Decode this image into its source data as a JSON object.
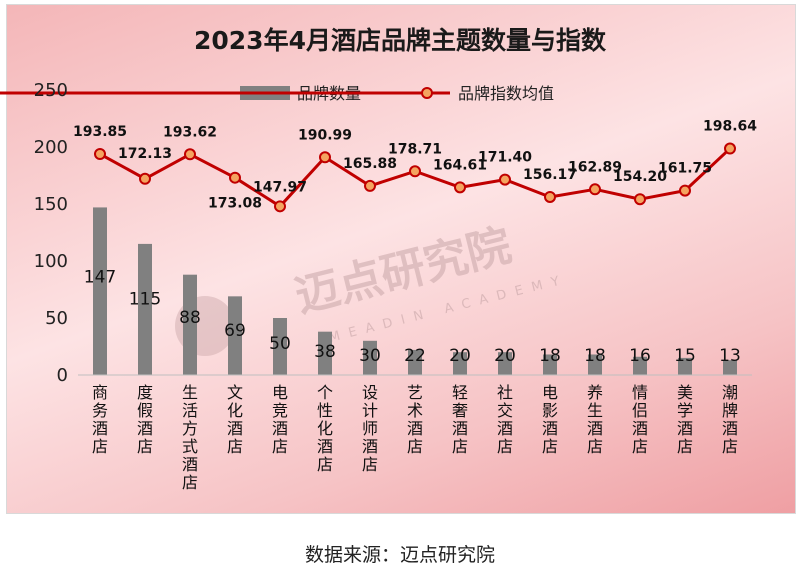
{
  "chart_data": {
    "type": "bar",
    "title": "2023年4月酒店品牌主题数量与指数",
    "categories": [
      "商务酒店",
      "度假酒店",
      "生活方式酒店",
      "文化酒店",
      "电竞酒店",
      "个性化酒店",
      "设计师酒店",
      "艺术酒店",
      "轻奢酒店",
      "社交酒店",
      "电影酒店",
      "养生酒店",
      "情侣酒店",
      "美学酒店",
      "潮牌酒店"
    ],
    "series": [
      {
        "name": "品牌数量",
        "kind": "bar",
        "values": [
          147,
          115,
          88,
          69,
          50,
          38,
          30,
          22,
          20,
          20,
          18,
          18,
          16,
          15,
          13
        ],
        "color": "#808080"
      },
      {
        "name": "品牌指数均值",
        "kind": "line",
        "values": [
          193.85,
          172.13,
          193.62,
          173.08,
          147.97,
          190.99,
          165.88,
          178.71,
          164.61,
          171.4,
          156.17,
          162.89,
          154.2,
          161.75,
          198.64
        ],
        "value_labels": [
          "193.85",
          "172.13",
          "193.62",
          "173.08",
          "147.97",
          "190.99",
          "165.88",
          "178.71",
          "164.61",
          "171.40",
          "156.17",
          "162.89",
          "154.20",
          "161.75",
          "198.64"
        ],
        "color": "#c00000",
        "marker_color": "#f4a460"
      }
    ],
    "yticks": [
      "0",
      "50",
      "100",
      "150",
      "200",
      "250"
    ],
    "ylim": [
      0,
      250
    ],
    "legend_position": "top",
    "grid": false
  },
  "watermark": {
    "text": "迈点研究院",
    "subtext": "MEADIN ACADEMY"
  },
  "source": "数据来源：迈点研究院"
}
